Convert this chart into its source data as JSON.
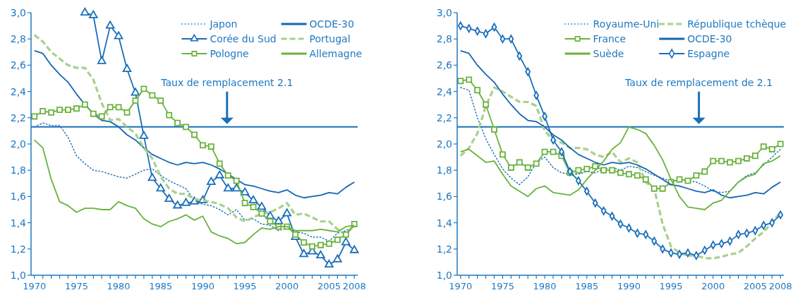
{
  "chart_data": [
    {
      "type": "line",
      "legend": "top right",
      "x": [
        1970,
        1971,
        1972,
        1973,
        1974,
        1975,
        1976,
        1977,
        1978,
        1979,
        1980,
        1981,
        1982,
        1983,
        1984,
        1985,
        1986,
        1987,
        1988,
        1989,
        1990,
        1991,
        1992,
        1993,
        1994,
        1995,
        1996,
        1997,
        1998,
        1999,
        2000,
        2001,
        2002,
        2003,
        2004,
        2005,
        2006,
        2007,
        2008
      ],
      "xlim": [
        1969.6,
        2008.4
      ],
      "xticks": [
        1970,
        {
          "value": 1971,
          "label": null
        },
        {
          "value": 1972,
          "label": null
        },
        {
          "value": 1973,
          "label": null
        },
        {
          "value": 1974,
          "label": null
        },
        1975,
        {
          "value": 1976,
          "label": null
        },
        {
          "value": 1977,
          "label": null
        },
        {
          "value": 1978,
          "label": null
        },
        {
          "value": 1979,
          "label": null
        },
        1980,
        {
          "value": 1981,
          "label": null
        },
        {
          "value": 1982,
          "label": null
        },
        {
          "value": 1983,
          "label": null
        },
        {
          "value": 1984,
          "label": null
        },
        1985,
        {
          "value": 1986,
          "label": null
        },
        {
          "value": 1987,
          "label": null
        },
        {
          "value": 1988,
          "label": null
        },
        {
          "value": 1989,
          "label": null
        },
        1990,
        {
          "value": 1991,
          "label": null
        },
        {
          "value": 1992,
          "label": null
        },
        {
          "value": 1993,
          "label": null
        },
        {
          "value": 1994,
          "label": null
        },
        1995,
        {
          "value": 1996,
          "label": null
        },
        {
          "value": 1997,
          "label": null
        },
        {
          "value": 1998,
          "label": null
        },
        {
          "value": 1999,
          "label": null
        },
        2000,
        {
          "value": 2001,
          "label": null
        },
        {
          "value": 2002,
          "label": null
        },
        {
          "value": 2003,
          "label": null
        },
        {
          "value": 2004,
          "label": null
        },
        2005,
        {
          "value": 2006,
          "label": null
        },
        {
          "value": 2007,
          "label": null
        },
        2008
      ],
      "ylim": [
        1,
        3
      ],
      "yticks": [
        {
          "value": 1,
          "label": "1,0"
        },
        {
          "value": 1.2,
          "label": "1,2"
        },
        {
          "value": 1.4,
          "label": "1,4"
        },
        {
          "value": 1.6,
          "label": "1,6"
        },
        {
          "value": 1.8,
          "label": "1,8"
        },
        {
          "value": 2,
          "label": "2,0"
        },
        {
          "value": 2.2,
          "label": "2,2"
        },
        {
          "value": 2.4,
          "label": "2,4"
        },
        {
          "value": 2.6,
          "label": "2,6"
        },
        {
          "value": 2.8,
          "label": "2,8"
        },
        {
          "value": 3,
          "label": "3,0"
        }
      ],
      "ref_lines": [
        {
          "axis": "y",
          "value": 2.13,
          "color": "#1a6fba"
        }
      ],
      "annotations": [
        "Taux de remplacement 2.1"
      ],
      "series": [
        {
          "name": "Japon",
          "color": "#1a6fba",
          "line_style": "dotted",
          "marker": "none",
          "values": [
            2.13,
            2.16,
            2.14,
            2.14,
            2.05,
            1.91,
            1.85,
            1.8,
            1.79,
            1.77,
            1.75,
            1.74,
            1.77,
            1.8,
            1.81,
            1.76,
            1.72,
            1.69,
            1.66,
            1.57,
            1.54,
            1.53,
            1.5,
            1.46,
            1.5,
            1.42,
            1.43,
            1.39,
            1.38,
            1.34,
            1.36,
            1.33,
            1.32,
            1.29,
            1.29,
            1.26,
            1.32,
            1.34,
            1.37
          ]
        },
        {
          "name": "OCDE-30",
          "color": "#1565b3",
          "line_style": "solid",
          "marker": "none",
          "values": [
            2.71,
            2.69,
            2.6,
            2.53,
            2.47,
            2.38,
            2.3,
            2.23,
            2.18,
            2.17,
            2.13,
            2.07,
            2.03,
            1.97,
            1.92,
            1.89,
            1.86,
            1.84,
            1.86,
            1.85,
            1.86,
            1.84,
            1.81,
            1.77,
            1.73,
            1.69,
            1.68,
            1.66,
            1.64,
            1.63,
            1.65,
            1.61,
            1.59,
            1.6,
            1.61,
            1.63,
            1.62,
            1.67,
            1.71
          ]
        },
        {
          "name": "Corée du Sud",
          "color": "#1a6fba",
          "line_style": "solid",
          "marker": "triangle",
          "values": [
            null,
            null,
            null,
            null,
            null,
            null,
            3.0,
            2.98,
            2.63,
            2.9,
            2.82,
            2.57,
            2.39,
            2.06,
            1.74,
            1.66,
            1.58,
            1.53,
            1.55,
            1.56,
            1.57,
            1.71,
            1.76,
            1.66,
            1.66,
            1.63,
            1.57,
            1.52,
            1.45,
            1.41,
            1.47,
            1.29,
            1.16,
            1.18,
            1.15,
            1.08,
            1.12,
            1.25,
            1.19
          ]
        },
        {
          "name": "Portugal",
          "color": "#a9d08e",
          "line_style": "dashed",
          "marker": "none",
          "values": [
            2.83,
            2.78,
            2.7,
            2.65,
            2.6,
            2.58,
            2.58,
            2.49,
            2.31,
            2.18,
            2.19,
            2.13,
            2.08,
            1.97,
            1.89,
            1.75,
            1.66,
            1.62,
            1.62,
            1.58,
            1.57,
            1.56,
            1.54,
            1.51,
            1.44,
            1.41,
            1.44,
            1.47,
            1.48,
            1.51,
            1.55,
            1.46,
            1.47,
            1.44,
            1.41,
            1.41,
            1.35,
            1.31,
            1.38
          ]
        },
        {
          "name": "Pologne",
          "color": "#6ab23e",
          "line_style": "solid",
          "marker": "square",
          "values": [
            2.21,
            2.25,
            2.24,
            2.26,
            2.26,
            2.27,
            2.3,
            2.23,
            2.21,
            2.28,
            2.28,
            2.24,
            2.33,
            2.42,
            2.37,
            2.33,
            2.22,
            2.16,
            2.13,
            2.07,
            1.99,
            1.98,
            1.85,
            1.76,
            1.72,
            1.55,
            1.52,
            1.47,
            1.41,
            1.37,
            1.37,
            1.31,
            1.25,
            1.22,
            1.23,
            1.24,
            1.27,
            1.31,
            1.39
          ]
        },
        {
          "name": "Allemagne",
          "color": "#6ab23e",
          "line_style": "solid",
          "marker": "none",
          "values": [
            2.03,
            1.97,
            1.73,
            1.56,
            1.53,
            1.48,
            1.51,
            1.51,
            1.5,
            1.5,
            1.56,
            1.53,
            1.51,
            1.43,
            1.39,
            1.37,
            1.41,
            1.43,
            1.46,
            1.42,
            1.45,
            1.33,
            1.3,
            1.28,
            1.24,
            1.25,
            1.31,
            1.36,
            1.35,
            1.37,
            1.37,
            1.34,
            1.34,
            1.34,
            1.35,
            1.34,
            1.33,
            1.37,
            1.38
          ]
        }
      ]
    },
    {
      "type": "line",
      "legend": "top right",
      "x": [
        1970,
        1971,
        1972,
        1973,
        1974,
        1975,
        1976,
        1977,
        1978,
        1979,
        1980,
        1981,
        1982,
        1983,
        1984,
        1985,
        1986,
        1987,
        1988,
        1989,
        1990,
        1991,
        1992,
        1993,
        1994,
        1995,
        1996,
        1997,
        1998,
        1999,
        2000,
        2001,
        2002,
        2003,
        2004,
        2005,
        2006,
        2007,
        2008
      ],
      "xlim": [
        1969.6,
        2008.4
      ],
      "xticks": [
        1970,
        {
          "value": 1971,
          "label": null
        },
        {
          "value": 1972,
          "label": null
        },
        {
          "value": 1973,
          "label": null
        },
        {
          "value": 1974,
          "label": null
        },
        1975,
        {
          "value": 1976,
          "label": null
        },
        {
          "value": 1977,
          "label": null
        },
        {
          "value": 1978,
          "label": null
        },
        {
          "value": 1979,
          "label": null
        },
        1980,
        {
          "value": 1981,
          "label": null
        },
        {
          "value": 1982,
          "label": null
        },
        {
          "value": 1983,
          "label": null
        },
        {
          "value": 1984,
          "label": null
        },
        1985,
        {
          "value": 1986,
          "label": null
        },
        {
          "value": 1987,
          "label": null
        },
        {
          "value": 1988,
          "label": null
        },
        {
          "value": 1989,
          "label": null
        },
        1990,
        {
          "value": 1991,
          "label": null
        },
        {
          "value": 1992,
          "label": null
        },
        {
          "value": 1993,
          "label": null
        },
        {
          "value": 1994,
          "label": null
        },
        1995,
        {
          "value": 1996,
          "label": null
        },
        {
          "value": 1997,
          "label": null
        },
        {
          "value": 1998,
          "label": null
        },
        {
          "value": 1999,
          "label": null
        },
        2000,
        {
          "value": 2001,
          "label": null
        },
        {
          "value": 2002,
          "label": null
        },
        {
          "value": 2003,
          "label": null
        },
        {
          "value": 2004,
          "label": null
        },
        2005,
        {
          "value": 2006,
          "label": null
        },
        {
          "value": 2007,
          "label": null
        },
        2008
      ],
      "ylim": [
        1,
        3
      ],
      "yticks": [
        {
          "value": 1,
          "label": "1,0"
        },
        {
          "value": 1.2,
          "label": "1,2"
        },
        {
          "value": 1.4,
          "label": "1,4"
        },
        {
          "value": 1.6,
          "label": "1,6"
        },
        {
          "value": 1.8,
          "label": "1,8"
        },
        {
          "value": 2,
          "label": "2,0"
        },
        {
          "value": 2.2,
          "label": "2,2"
        },
        {
          "value": 2.4,
          "label": "2,4"
        },
        {
          "value": 2.6,
          "label": "2,6"
        },
        {
          "value": 2.8,
          "label": "2,8"
        },
        {
          "value": 3,
          "label": "3,0"
        }
      ],
      "ref_lines": [
        {
          "axis": "y",
          "value": 2.13,
          "color": "#1a6fba"
        }
      ],
      "annotations": [
        "Taux de remplacement de 2.1"
      ],
      "series": [
        {
          "name": "Royaume-Uni",
          "color": "#1a6fba",
          "line_style": "dotted",
          "marker": "none",
          "values": [
            2.43,
            2.41,
            2.2,
            2.04,
            1.92,
            1.81,
            1.74,
            1.69,
            1.75,
            1.86,
            1.9,
            1.82,
            1.78,
            1.77,
            1.77,
            1.79,
            1.78,
            1.81,
            1.82,
            1.8,
            1.83,
            1.82,
            1.79,
            1.76,
            1.74,
            1.71,
            1.73,
            1.72,
            1.71,
            1.68,
            1.64,
            1.63,
            1.64,
            1.71,
            1.76,
            1.78,
            1.84,
            1.9,
            1.96
          ]
        },
        {
          "name": "République tchèque",
          "color": "#a9d08e",
          "line_style": "dashed",
          "marker": "none",
          "values": [
            1.91,
            1.97,
            2.08,
            2.29,
            2.43,
            2.4,
            2.36,
            2.32,
            2.32,
            2.29,
            2.1,
            2.03,
            2.01,
            1.97,
            1.97,
            1.96,
            1.92,
            1.9,
            1.94,
            1.86,
            1.89,
            1.86,
            1.71,
            1.66,
            1.39,
            1.22,
            1.17,
            1.15,
            1.15,
            1.13,
            1.13,
            1.14,
            1.16,
            1.17,
            1.22,
            1.28,
            1.33,
            1.4,
            1.48
          ]
        },
        {
          "name": "France",
          "color": "#6ab23e",
          "line_style": "solid",
          "marker": "square",
          "values": [
            2.48,
            2.49,
            2.41,
            2.3,
            2.11,
            1.92,
            1.82,
            1.86,
            1.82,
            1.85,
            1.94,
            1.94,
            1.91,
            1.78,
            1.8,
            1.81,
            1.83,
            1.8,
            1.8,
            1.78,
            1.77,
            1.76,
            1.73,
            1.66,
            1.66,
            1.71,
            1.73,
            1.72,
            1.76,
            1.79,
            1.87,
            1.87,
            1.86,
            1.87,
            1.89,
            1.91,
            1.98,
            1.96,
            2.0
          ]
        },
        {
          "name": "OCDE-30",
          "color": "#1565b3",
          "line_style": "solid",
          "marker": "none",
          "values": [
            2.71,
            2.69,
            2.6,
            2.53,
            2.47,
            2.38,
            2.3,
            2.23,
            2.18,
            2.17,
            2.13,
            2.07,
            2.03,
            1.97,
            1.92,
            1.89,
            1.86,
            1.84,
            1.86,
            1.85,
            1.86,
            1.84,
            1.81,
            1.77,
            1.73,
            1.69,
            1.68,
            1.66,
            1.64,
            1.63,
            1.65,
            1.61,
            1.59,
            1.6,
            1.61,
            1.63,
            1.62,
            1.67,
            1.71
          ]
        },
        {
          "name": "Suède",
          "color": "#6ab23e",
          "line_style": "solid",
          "marker": "none",
          "values": [
            1.94,
            1.96,
            1.91,
            1.86,
            1.87,
            1.77,
            1.68,
            1.64,
            1.6,
            1.66,
            1.68,
            1.63,
            1.62,
            1.61,
            1.65,
            1.73,
            1.8,
            1.87,
            1.96,
            2.01,
            2.13,
            2.11,
            2.08,
            1.99,
            1.88,
            1.73,
            1.6,
            1.52,
            1.51,
            1.5,
            1.55,
            1.57,
            1.64,
            1.71,
            1.75,
            1.77,
            1.85,
            1.87,
            1.91
          ]
        },
        {
          "name": "Espagne",
          "color": "#1a6fba",
          "line_style": "solid",
          "marker": "diamond",
          "values": [
            2.9,
            2.88,
            2.86,
            2.84,
            2.89,
            2.8,
            2.8,
            2.67,
            2.55,
            2.37,
            2.21,
            2.03,
            1.94,
            1.79,
            1.72,
            1.64,
            1.55,
            1.49,
            1.45,
            1.39,
            1.36,
            1.32,
            1.31,
            1.26,
            1.2,
            1.17,
            1.16,
            1.17,
            1.15,
            1.19,
            1.23,
            1.24,
            1.26,
            1.31,
            1.32,
            1.34,
            1.38,
            1.4,
            1.46
          ]
        }
      ]
    }
  ]
}
